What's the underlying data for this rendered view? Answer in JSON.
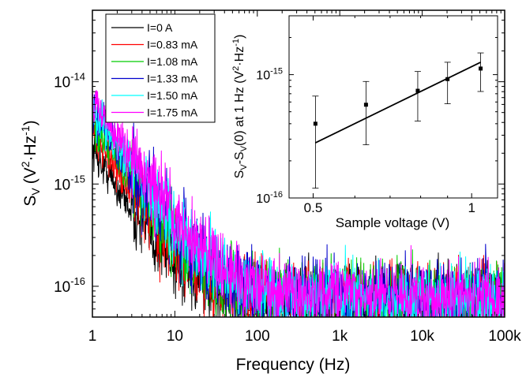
{
  "chart_data": [
    {
      "type": "line",
      "xlabel": "Frequency (Hz)",
      "ylabel": {
        "base": "S",
        "sub": "V",
        "paren": "(V",
        "sup1": "2",
        "dot": "·Hz",
        "sup2": "-1",
        "close": ")"
      },
      "x_scale": "log",
      "y_scale": "log",
      "xlim": [
        1,
        100000
      ],
      "ylim": [
        5e-17,
        5e-14
      ],
      "x_ticks": [
        {
          "value": 1,
          "label": "1"
        },
        {
          "value": 10,
          "label": "10"
        },
        {
          "value": 100,
          "label": "100"
        },
        {
          "value": 1000,
          "label": "1k"
        },
        {
          "value": 10000,
          "label": "10k"
        },
        {
          "value": 100000,
          "label": "100k"
        }
      ],
      "y_ticks": [
        {
          "value": 1e-16,
          "base": "10",
          "exp": "-16"
        },
        {
          "value": 1e-15,
          "base": "10",
          "exp": "-15"
        },
        {
          "value": 1e-14,
          "base": "10",
          "exp": "-14"
        }
      ],
      "legend_position": "top-left",
      "series": [
        {
          "name": "I=0 A",
          "color": "#000000",
          "low_freq_amp": 2.2e-15,
          "exponent": 1.35,
          "floor": 7.5e-17,
          "noise": 0.25
        },
        {
          "name": "I=0.83 mA",
          "color": "#ff0000",
          "low_freq_amp": 3.3e-15,
          "exponent": 1.3,
          "floor": 7.6e-17,
          "noise": 0.25
        },
        {
          "name": "I=1.08 mA",
          "color": "#00cc00",
          "low_freq_amp": 4e-15,
          "exponent": 1.28,
          "floor": 7.7e-17,
          "noise": 0.25
        },
        {
          "name": "I=1.33 mA",
          "color": "#0000cc",
          "low_freq_amp": 5e-15,
          "exponent": 1.25,
          "floor": 7.5e-17,
          "noise": 0.28
        },
        {
          "name": "I=1.50 mA",
          "color": "#00ffff",
          "low_freq_amp": 5.5e-15,
          "exponent": 1.23,
          "floor": 7.4e-17,
          "noise": 0.25
        },
        {
          "name": "I=1.75 mA",
          "color": "#ff00ff",
          "low_freq_amp": 6.5e-15,
          "exponent": 1.2,
          "floor": 7.8e-17,
          "noise": 0.25
        }
      ]
    },
    {
      "type": "scatter",
      "xlabel": "Sample voltage (V)",
      "ylabel": {
        "p1": "S",
        "sub1": "V",
        "p2": "-S",
        "sub2": "V",
        "p3": "(0) at 1 Hz (V",
        "sup1": "2",
        "p4": "·Hz",
        "sup2": "-1",
        "p5": ")"
      },
      "x_scale": "log",
      "y_scale": "log",
      "xlim": [
        0.45,
        1.12
      ],
      "ylim": [
        1e-16,
        3e-15
      ],
      "x_ticks": [
        {
          "value": 0.5,
          "label": "0.5"
        },
        {
          "value": 1,
          "label": "1"
        }
      ],
      "y_ticks": [
        {
          "value": 1e-16,
          "base": "10",
          "exp": "-16"
        },
        {
          "value": 1e-15,
          "base": "10",
          "exp": "-15"
        }
      ],
      "points": [
        {
          "x": 0.505,
          "y": 4e-16,
          "ylow": 1.2e-16,
          "yhigh": 6.7e-16
        },
        {
          "x": 0.63,
          "y": 5.7e-16,
          "ylow": 2.7e-16,
          "yhigh": 8.8e-16
        },
        {
          "x": 0.79,
          "y": 7.4e-16,
          "ylow": 4.2e-16,
          "yhigh": 1.06e-15
        },
        {
          "x": 0.9,
          "y": 9.2e-16,
          "ylow": 5.8e-16,
          "yhigh": 1.26e-15
        },
        {
          "x": 1.04,
          "y": 1.12e-15,
          "ylow": 7.3e-16,
          "yhigh": 1.5e-15
        }
      ],
      "fit_line": {
        "x": [
          0.505,
          1.04
        ],
        "y": [
          2.8e-16,
          1.26e-15
        ]
      }
    }
  ]
}
